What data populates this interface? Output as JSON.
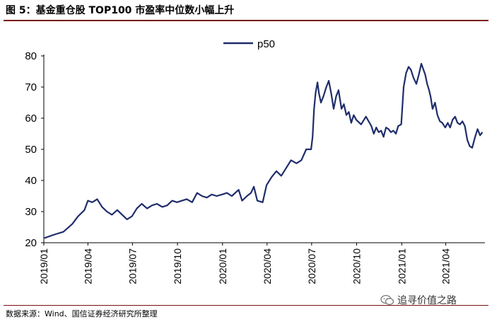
{
  "header": {
    "title": "图 5：基金重仓股 TOP100 市盈率中位数小幅上升"
  },
  "footer": {
    "source": "数据来源：Wind、国信证券经济研究所整理",
    "watermark": "追寻价值之路"
  },
  "colors": {
    "line": "#1f2d6b",
    "accent": "#7a0f12"
  },
  "chart_data": {
    "type": "line",
    "title": "",
    "xlabel": "",
    "ylabel": "",
    "ylim": [
      20,
      80
    ],
    "yticks": [
      20,
      30,
      40,
      50,
      60,
      70,
      80
    ],
    "xticks": [
      "2019/01",
      "2019/04",
      "2019/07",
      "2019/10",
      "2020/01",
      "2020/04",
      "2020/07",
      "2020/10",
      "2021/01",
      "2021/04"
    ],
    "legend": "top-center",
    "grid": false,
    "series": [
      {
        "name": "p50",
        "x": [
          "2019/01/02",
          "2019/01/20",
          "2019/02/10",
          "2019/02/28",
          "2019/03/12",
          "2019/03/25",
          "2019/04/01",
          "2019/04/10",
          "2019/04/20",
          "2019/04/30",
          "2019/05/10",
          "2019/05/20",
          "2019/05/31",
          "2019/06/10",
          "2019/06/20",
          "2019/06/30",
          "2019/07/10",
          "2019/07/20",
          "2019/07/31",
          "2019/08/10",
          "2019/08/20",
          "2019/08/31",
          "2019/09/10",
          "2019/09/20",
          "2019/09/30",
          "2019/10/10",
          "2019/10/20",
          "2019/10/31",
          "2019/11/10",
          "2019/11/20",
          "2019/11/30",
          "2019/12/10",
          "2019/12/20",
          "2019/12/31",
          "2020/01/10",
          "2020/01/20",
          "2020/02/03",
          "2020/02/10",
          "2020/02/20",
          "2020/02/28",
          "2020/03/05",
          "2020/03/12",
          "2020/03/23",
          "2020/03/31",
          "2020/04/10",
          "2020/04/20",
          "2020/04/30",
          "2020/05/10",
          "2020/05/20",
          "2020/05/31",
          "2020/06/10",
          "2020/06/20",
          "2020/06/30",
          "2020/07/03",
          "2020/07/06",
          "2020/07/09",
          "2020/07/13",
          "2020/07/16",
          "2020/07/20",
          "2020/07/25",
          "2020/07/31",
          "2020/08/05",
          "2020/08/10",
          "2020/08/15",
          "2020/08/20",
          "2020/08/25",
          "2020/08/31",
          "2020/09/05",
          "2020/09/10",
          "2020/09/15",
          "2020/09/20",
          "2020/09/25",
          "2020/09/30",
          "2020/10/10",
          "2020/10/20",
          "2020/10/31",
          "2020/11/05",
          "2020/11/10",
          "2020/11/15",
          "2020/11/20",
          "2020/11/25",
          "2020/11/30",
          "2020/12/05",
          "2020/12/10",
          "2020/12/15",
          "2020/12/20",
          "2020/12/25",
          "2020/12/31",
          "2021/01/05",
          "2021/01/10",
          "2021/01/15",
          "2021/01/20",
          "2021/01/25",
          "2021/01/31",
          "2021/02/05",
          "2021/02/10",
          "2021/02/18",
          "2021/02/22",
          "2021/02/26",
          "2021/03/01",
          "2021/03/05",
          "2021/03/10",
          "2021/03/15",
          "2021/03/20",
          "2021/03/25",
          "2021/03/31",
          "2021/04/05",
          "2021/04/10",
          "2021/04/15",
          "2021/04/20",
          "2021/04/25",
          "2021/04/30",
          "2021/05/05",
          "2021/05/10",
          "2021/05/15",
          "2021/05/20",
          "2021/05/25",
          "2021/05/31",
          "2021/06/05",
          "2021/06/10",
          "2021/06/15"
        ],
        "y": [
          21.5,
          22.5,
          23.5,
          26,
          28.5,
          30.5,
          33.5,
          33,
          34,
          31.5,
          30,
          29,
          30.5,
          29,
          27.5,
          28.5,
          31,
          32.5,
          31,
          32,
          32.5,
          31.5,
          32,
          33.5,
          33,
          33.5,
          34,
          33,
          36,
          35,
          34.5,
          35.5,
          35,
          35.5,
          36,
          35,
          37,
          33.5,
          35,
          36,
          38,
          33.5,
          33,
          38.5,
          41,
          43,
          41.5,
          44,
          46.5,
          45.5,
          46.5,
          50,
          50,
          54,
          63,
          68,
          71.5,
          68,
          65,
          67,
          70,
          72,
          68,
          63,
          67,
          69,
          63,
          64.5,
          61,
          62,
          58.5,
          61,
          59.5,
          58,
          60.5,
          57.5,
          55,
          57,
          55.5,
          56,
          54,
          57,
          56.5,
          55.5,
          56,
          55,
          57.5,
          58,
          70,
          74.5,
          76.5,
          75.5,
          73,
          71,
          74,
          77.5,
          74,
          71,
          69,
          67,
          63,
          65,
          61,
          59,
          58.5,
          57,
          58.5,
          57,
          59.5,
          60.5,
          58.5,
          58,
          59,
          57.5,
          53,
          51,
          50.5,
          54,
          56.5,
          54.5,
          55.5
        ]
      }
    ]
  }
}
